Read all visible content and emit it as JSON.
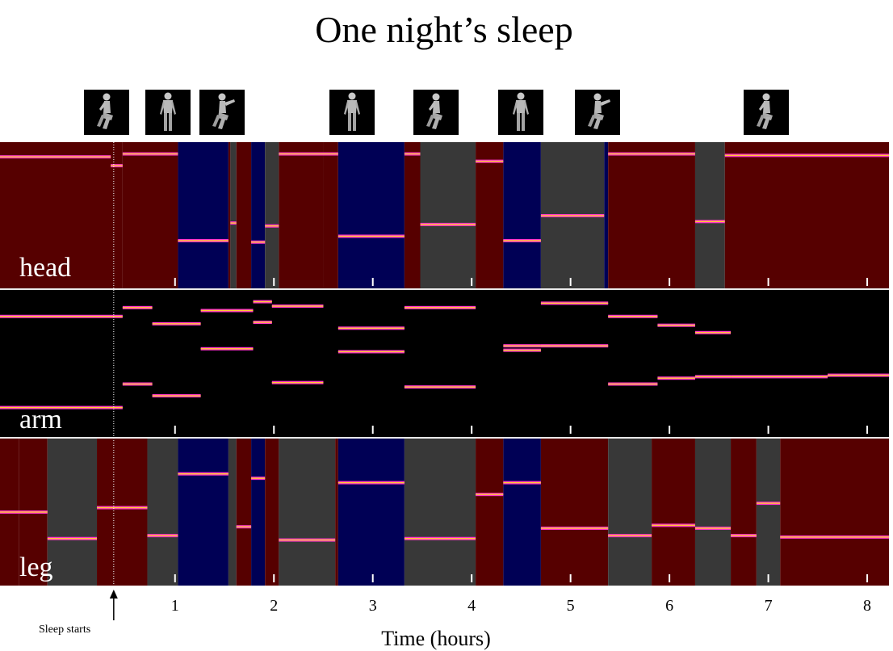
{
  "title": "One night’s sleep",
  "figures": [
    {
      "pose": "side-bent-legs"
    },
    {
      "pose": "back-straight"
    },
    {
      "pose": "side-bent-legs-arm-out"
    },
    {
      "pose": "back-straight"
    },
    {
      "pose": "side-bent-legs"
    },
    {
      "pose": "back-straight"
    },
    {
      "pose": "side-bent-legs-arm-out"
    },
    {
      "pose": "side-bent-legs"
    }
  ],
  "annotation": {
    "label": "Sleep starts",
    "x": 0.38
  },
  "chart_data": {
    "type": "heatmap",
    "title": "One night’s sleep",
    "xlabel": "Time (hours)",
    "ylabel": "",
    "x_start": -0.77,
    "x_end": 8.22,
    "xticks": [
      1,
      2,
      3,
      4,
      5,
      6,
      7,
      8
    ],
    "xtick_labels": [
      "1",
      "2",
      "3",
      "4",
      "5",
      "6",
      "7",
      "8"
    ],
    "state_colors": {
      "red": "#560000",
      "blue": "#000055",
      "gray": "#383838",
      "black": "#000000",
      "trace": "#ff33cc",
      "trace_core": "#ffcc33"
    },
    "panels": [
      {
        "name": "head",
        "segments": [
          {
            "start": -0.77,
            "end": 0.47,
            "state": "red"
          },
          {
            "start": 0.47,
            "end": 1.03,
            "state": "red"
          },
          {
            "start": 1.03,
            "end": 1.54,
            "state": "blue"
          },
          {
            "start": 1.54,
            "end": 1.56,
            "state": "red"
          },
          {
            "start": 1.56,
            "end": 1.62,
            "state": "gray"
          },
          {
            "start": 1.62,
            "end": 1.77,
            "state": "red"
          },
          {
            "start": 1.77,
            "end": 1.91,
            "state": "blue"
          },
          {
            "start": 1.91,
            "end": 2.05,
            "state": "gray"
          },
          {
            "start": 2.05,
            "end": 2.5,
            "state": "red"
          },
          {
            "start": 2.5,
            "end": 2.65,
            "state": "red"
          },
          {
            "start": 2.65,
            "end": 3.32,
            "state": "blue"
          },
          {
            "start": 3.32,
            "end": 3.48,
            "state": "red"
          },
          {
            "start": 3.48,
            "end": 4.04,
            "state": "gray"
          },
          {
            "start": 4.04,
            "end": 4.32,
            "state": "red"
          },
          {
            "start": 4.32,
            "end": 4.7,
            "state": "blue"
          },
          {
            "start": 4.7,
            "end": 5.34,
            "state": "gray"
          },
          {
            "start": 5.34,
            "end": 5.38,
            "state": "blue"
          },
          {
            "start": 5.38,
            "end": 6.26,
            "state": "red"
          },
          {
            "start": 6.26,
            "end": 6.56,
            "state": "gray"
          },
          {
            "start": 6.56,
            "end": 8.22,
            "state": "red"
          }
        ],
        "traces": [
          {
            "start": -0.77,
            "end": 0.35,
            "y": 0.1
          },
          {
            "start": 0.35,
            "end": 0.47,
            "y": 0.16
          },
          {
            "start": 0.47,
            "end": 1.03,
            "y": 0.08
          },
          {
            "start": 1.03,
            "end": 1.54,
            "y": 0.67
          },
          {
            "start": 1.56,
            "end": 1.62,
            "y": 0.55
          },
          {
            "start": 1.77,
            "end": 1.91,
            "y": 0.68
          },
          {
            "start": 1.91,
            "end": 2.05,
            "y": 0.57
          },
          {
            "start": 2.05,
            "end": 2.65,
            "y": 0.08
          },
          {
            "start": 2.65,
            "end": 3.32,
            "y": 0.64
          },
          {
            "start": 3.32,
            "end": 3.48,
            "y": 0.08
          },
          {
            "start": 3.48,
            "end": 4.04,
            "y": 0.56
          },
          {
            "start": 4.04,
            "end": 4.32,
            "y": 0.13
          },
          {
            "start": 4.32,
            "end": 4.7,
            "y": 0.67
          },
          {
            "start": 4.7,
            "end": 5.34,
            "y": 0.5
          },
          {
            "start": 5.38,
            "end": 6.26,
            "y": 0.08
          },
          {
            "start": 6.26,
            "end": 6.56,
            "y": 0.54
          },
          {
            "start": 6.56,
            "end": 8.22,
            "y": 0.09
          }
        ]
      },
      {
        "name": "arm",
        "segments": [
          {
            "start": -0.77,
            "end": 8.22,
            "state": "black"
          }
        ],
        "traces": [
          {
            "start": -0.77,
            "end": 0.47,
            "y": 0.18
          },
          {
            "start": -0.77,
            "end": 0.47,
            "y": 0.8
          },
          {
            "start": 0.47,
            "end": 0.77,
            "y": 0.12
          },
          {
            "start": 0.47,
            "end": 0.77,
            "y": 0.64
          },
          {
            "start": 0.77,
            "end": 1.26,
            "y": 0.23
          },
          {
            "start": 0.77,
            "end": 1.26,
            "y": 0.72
          },
          {
            "start": 1.26,
            "end": 1.79,
            "y": 0.14
          },
          {
            "start": 1.26,
            "end": 1.79,
            "y": 0.4
          },
          {
            "start": 1.79,
            "end": 1.98,
            "y": 0.08
          },
          {
            "start": 1.79,
            "end": 1.98,
            "y": 0.22
          },
          {
            "start": 1.98,
            "end": 2.5,
            "y": 0.11
          },
          {
            "start": 1.98,
            "end": 2.5,
            "y": 0.63
          },
          {
            "start": 2.65,
            "end": 3.32,
            "y": 0.26
          },
          {
            "start": 2.65,
            "end": 3.32,
            "y": 0.42
          },
          {
            "start": 3.32,
            "end": 4.04,
            "y": 0.12
          },
          {
            "start": 3.32,
            "end": 4.04,
            "y": 0.66
          },
          {
            "start": 4.32,
            "end": 4.7,
            "y": 0.38
          },
          {
            "start": 4.32,
            "end": 4.7,
            "y": 0.41
          },
          {
            "start": 4.7,
            "end": 5.38,
            "y": 0.09
          },
          {
            "start": 4.7,
            "end": 5.38,
            "y": 0.38
          },
          {
            "start": 5.38,
            "end": 5.88,
            "y": 0.18
          },
          {
            "start": 5.38,
            "end": 5.88,
            "y": 0.64
          },
          {
            "start": 5.88,
            "end": 6.26,
            "y": 0.24
          },
          {
            "start": 5.88,
            "end": 6.26,
            "y": 0.6
          },
          {
            "start": 6.26,
            "end": 6.62,
            "y": 0.29
          },
          {
            "start": 6.26,
            "end": 6.62,
            "y": 0.59
          },
          {
            "start": 6.62,
            "end": 7.6,
            "y": 0.59
          },
          {
            "start": 7.6,
            "end": 8.22,
            "y": 0.58
          }
        ]
      },
      {
        "name": "leg",
        "segments": [
          {
            "start": -0.77,
            "end": -0.58,
            "state": "red"
          },
          {
            "start": -0.58,
            "end": -0.29,
            "state": "red"
          },
          {
            "start": -0.29,
            "end": 0.21,
            "state": "gray"
          },
          {
            "start": 0.21,
            "end": 0.72,
            "state": "red"
          },
          {
            "start": 0.72,
            "end": 1.03,
            "state": "gray"
          },
          {
            "start": 1.03,
            "end": 1.54,
            "state": "blue"
          },
          {
            "start": 1.54,
            "end": 1.62,
            "state": "gray"
          },
          {
            "start": 1.62,
            "end": 1.77,
            "state": "red"
          },
          {
            "start": 1.77,
            "end": 1.91,
            "state": "blue"
          },
          {
            "start": 1.91,
            "end": 2.05,
            "state": "red"
          },
          {
            "start": 2.05,
            "end": 2.62,
            "state": "gray"
          },
          {
            "start": 2.62,
            "end": 2.65,
            "state": "red"
          },
          {
            "start": 2.65,
            "end": 3.32,
            "state": "blue"
          },
          {
            "start": 3.32,
            "end": 4.04,
            "state": "gray"
          },
          {
            "start": 4.04,
            "end": 4.32,
            "state": "red"
          },
          {
            "start": 4.32,
            "end": 4.7,
            "state": "blue"
          },
          {
            "start": 4.7,
            "end": 5.38,
            "state": "red"
          },
          {
            "start": 5.38,
            "end": 5.82,
            "state": "gray"
          },
          {
            "start": 5.82,
            "end": 6.26,
            "state": "red"
          },
          {
            "start": 6.26,
            "end": 6.62,
            "state": "gray"
          },
          {
            "start": 6.62,
            "end": 6.88,
            "state": "red"
          },
          {
            "start": 6.88,
            "end": 7.12,
            "state": "gray"
          },
          {
            "start": 7.12,
            "end": 8.22,
            "state": "red"
          }
        ],
        "traces": [
          {
            "start": -0.77,
            "end": -0.29,
            "y": 0.5
          },
          {
            "start": -0.29,
            "end": 0.21,
            "y": 0.68
          },
          {
            "start": 0.21,
            "end": 0.72,
            "y": 0.47
          },
          {
            "start": 0.72,
            "end": 1.03,
            "y": 0.66
          },
          {
            "start": 1.03,
            "end": 1.54,
            "y": 0.24
          },
          {
            "start": 1.62,
            "end": 1.77,
            "y": 0.6
          },
          {
            "start": 1.77,
            "end": 1.91,
            "y": 0.27
          },
          {
            "start": 2.05,
            "end": 2.62,
            "y": 0.69
          },
          {
            "start": 2.65,
            "end": 3.32,
            "y": 0.3
          },
          {
            "start": 3.32,
            "end": 4.04,
            "y": 0.68
          },
          {
            "start": 4.04,
            "end": 4.32,
            "y": 0.38
          },
          {
            "start": 4.32,
            "end": 4.7,
            "y": 0.3
          },
          {
            "start": 4.7,
            "end": 5.38,
            "y": 0.61
          },
          {
            "start": 5.38,
            "end": 5.82,
            "y": 0.66
          },
          {
            "start": 5.82,
            "end": 6.26,
            "y": 0.59
          },
          {
            "start": 6.26,
            "end": 6.62,
            "y": 0.61
          },
          {
            "start": 6.62,
            "end": 6.88,
            "y": 0.66
          },
          {
            "start": 6.88,
            "end": 7.12,
            "y": 0.44
          },
          {
            "start": 7.12,
            "end": 8.22,
            "y": 0.67
          }
        ]
      }
    ]
  }
}
